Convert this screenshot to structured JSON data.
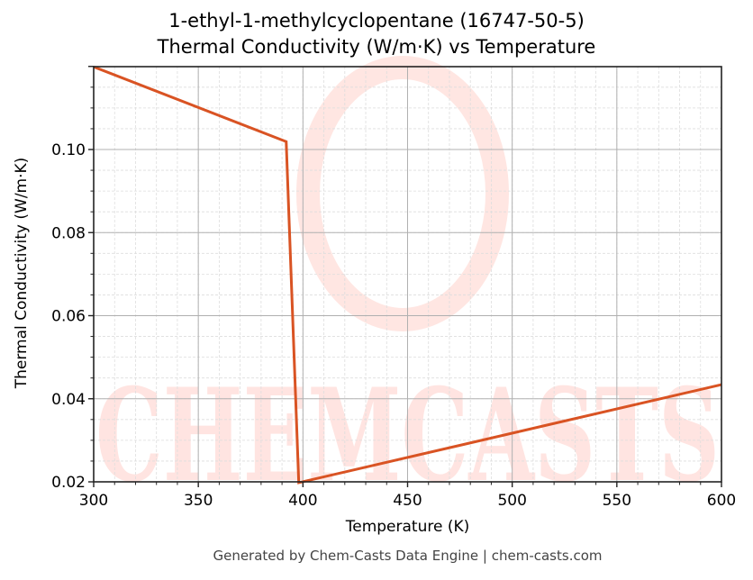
{
  "chart_data": {
    "type": "line",
    "title": "1-ethyl-1-methylcyclopentane (16747-50-5)",
    "subtitle": "Thermal Conductivity (W/m·K) vs Temperature",
    "xlabel": "Temperature (K)",
    "ylabel": "Thermal Conductivity (W/m·K)",
    "xlim": [
      300,
      600
    ],
    "ylim": [
      0.02,
      0.12
    ],
    "xticks": [
      300,
      350,
      400,
      450,
      500,
      550,
      600
    ],
    "yticks": [
      0.02,
      0.04,
      0.06,
      0.08,
      0.1
    ],
    "ytick_labels": [
      "0.02",
      "0.04",
      "0.06",
      "0.08",
      "0.10"
    ],
    "grid": true,
    "series": [
      {
        "name": "Thermal Conductivity",
        "color": "#d95323",
        "x": [
          300,
          392,
          398,
          600
        ],
        "y": [
          0.1199,
          0.1019,
          0.0198,
          0.0434
        ]
      }
    ],
    "watermark": "CHEMCASTS"
  },
  "footer": "Generated by Chem-Casts Data Engine | chem-casts.com"
}
